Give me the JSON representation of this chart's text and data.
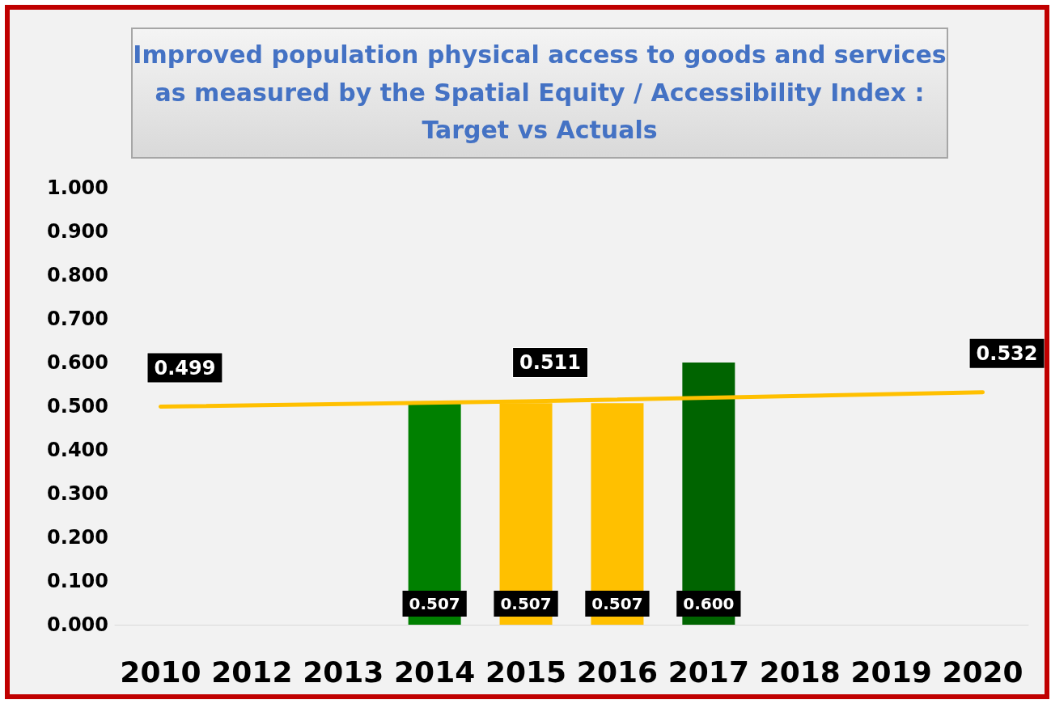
{
  "chart_data": {
    "type": "bar",
    "title": "Improved population physical access to goods and services as measured by the Spatial Equity / Accessibility Index : Target vs Actuals",
    "categories": [
      "2010",
      "2012",
      "2013",
      "2014",
      "2015",
      "2016",
      "2017",
      "2018",
      "2019",
      "2020"
    ],
    "series": [
      {
        "colors": [
          null,
          null,
          null,
          "#008000",
          "#ffc000",
          "#ffc000",
          "#006400",
          null,
          null,
          null
        ],
        "values": [
          null,
          null,
          null,
          0.507,
          0.507,
          0.507,
          0.6,
          null,
          null,
          null
        ],
        "value_labels": [
          null,
          null,
          null,
          "0.507",
          "0.507",
          "0.507",
          "0.600",
          null,
          null,
          null
        ]
      },
      {
        "type": "line",
        "color": "#ffc000",
        "values": [
          0.499,
          null,
          null,
          null,
          0.511,
          null,
          null,
          null,
          null,
          0.532
        ],
        "value_labels": [
          "0.499",
          null,
          null,
          null,
          "0.511",
          null,
          null,
          null,
          null,
          "0.532"
        ]
      }
    ],
    "ylim": [
      0,
      1
    ],
    "yticks": [
      {
        "value": 0,
        "label": "0.000"
      },
      {
        "value": 0.1,
        "label": "0.100"
      },
      {
        "value": 0.2,
        "label": "0.200"
      },
      {
        "value": 0.3,
        "label": "0.300"
      },
      {
        "value": 0.4,
        "label": "0.400"
      },
      {
        "value": 0.5,
        "label": "0.500"
      },
      {
        "value": 0.6,
        "label": "0.600"
      },
      {
        "value": 0.7,
        "label": "0.700"
      },
      {
        "value": 0.8,
        "label": "0.800"
      },
      {
        "value": 0.9,
        "label": "0.900"
      },
      {
        "value": 1,
        "label": "1.000"
      }
    ],
    "grid": false,
    "marker": "none"
  }
}
